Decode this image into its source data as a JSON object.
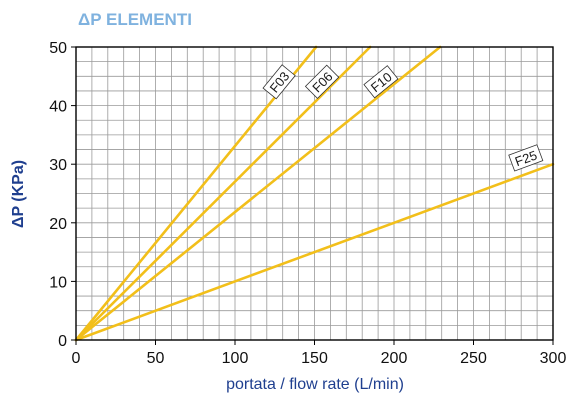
{
  "chart_data": {
    "type": "line",
    "title": "ΔP ELEMENTI",
    "xlabel": "portata / flow rate (L/min)",
    "ylabel": "ΔP (KPa)",
    "xlim": [
      0,
      300
    ],
    "ylim": [
      0,
      50
    ],
    "x_ticks": [
      0,
      50,
      100,
      150,
      200,
      250,
      300
    ],
    "y_ticks": [
      0,
      10,
      20,
      30,
      40,
      50
    ],
    "x_minor_step": 10,
    "y_minor_step": 2.5,
    "grid": true,
    "series": [
      {
        "name": "F03",
        "x": [
          0,
          151
        ],
        "y": [
          0,
          50
        ],
        "label_at": [
          128,
          44
        ]
      },
      {
        "name": "F06",
        "x": [
          0,
          185
        ],
        "y": [
          0,
          50
        ],
        "label_at": [
          155,
          44
        ]
      },
      {
        "name": "F10",
        "x": [
          0,
          229
        ],
        "y": [
          0,
          50
        ],
        "label_at": [
          192,
          44
        ]
      },
      {
        "name": "F25",
        "x": [
          0,
          300
        ],
        "y": [
          0,
          30
        ],
        "label_at": [
          283,
          31
        ]
      }
    ]
  },
  "colors": {
    "title": "#7fb2df",
    "axis_label": "#1f3f8f",
    "series": "#f2bf1a",
    "grid": "#9a9a9a",
    "axis": "#000000"
  }
}
